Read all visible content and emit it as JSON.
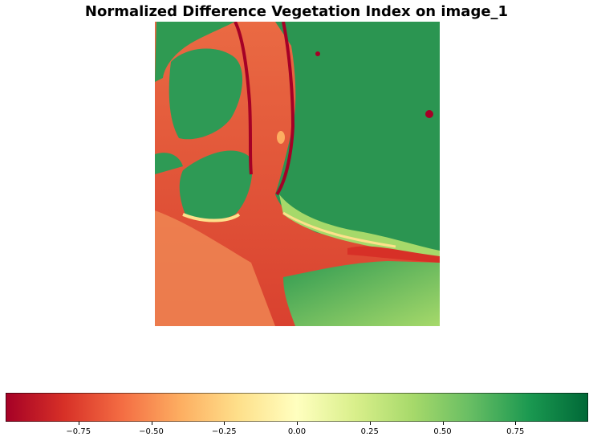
{
  "title": "Normalized Difference Vegetation Index on image_1",
  "colorbar": {
    "colormap": "RdYlGn",
    "colors": [
      "#a50026",
      "#d73027",
      "#f46d43",
      "#fdae61",
      "#fee08b",
      "#ffffbf",
      "#d9ef8b",
      "#a6d96a",
      "#66bd63",
      "#1a9850",
      "#006837"
    ],
    "range": [
      -1.0,
      1.0
    ],
    "ticks": [
      {
        "value": -0.75,
        "label": "−0.75"
      },
      {
        "value": -0.5,
        "label": "−0.50"
      },
      {
        "value": -0.25,
        "label": "−0.25"
      },
      {
        "value": 0.0,
        "label": "0.00"
      },
      {
        "value": 0.25,
        "label": "0.25"
      },
      {
        "value": 0.5,
        "label": "0.50"
      },
      {
        "value": 0.75,
        "label": "0.75"
      }
    ]
  },
  "image": {
    "water_color": "#e0533a",
    "land_color": "#2e9a55",
    "urban_color": "#bfe08a",
    "shore_color": "#fee08b"
  }
}
